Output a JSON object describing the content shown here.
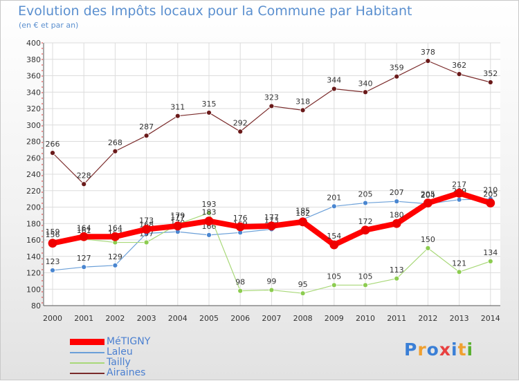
{
  "title": "Evolution des Impôts locaux pour la Commune par Habitant",
  "subtitle": "(en € et par an)",
  "logo": {
    "text": "Proxiti",
    "letters": [
      "P",
      "r",
      "o",
      "x",
      "i",
      "t",
      "i"
    ],
    "colors": [
      "#3a7fd6",
      "#f0a030",
      "#3a7fd6",
      "#e84040",
      "#3a7fd6",
      "#f0a030",
      "#5ab030"
    ]
  },
  "chart_data": {
    "type": "line",
    "x": [
      2000,
      2001,
      2002,
      2003,
      2004,
      2005,
      2006,
      2007,
      2008,
      2009,
      2010,
      2011,
      2012,
      2013,
      2014
    ],
    "ylim": [
      80,
      400
    ],
    "yticks": [
      80,
      100,
      120,
      140,
      160,
      180,
      200,
      220,
      240,
      260,
      280,
      300,
      320,
      340,
      360,
      380,
      400
    ],
    "grid": true,
    "legend_position": "bottom-left",
    "series": [
      {
        "name": "Airaines",
        "color": "#7a2a2a",
        "marker": "#6a1a1a",
        "width": 1.2,
        "values": [
          266,
          228,
          268,
          287,
          311,
          315,
          292,
          323,
          318,
          344,
          340,
          359,
          378,
          362,
          352
        ]
      },
      {
        "name": "Laleu",
        "color": "#6a9fd8",
        "marker": "#4a86d0",
        "width": 1.2,
        "values": [
          123,
          127,
          129,
          168,
          170,
          166,
          169,
          173,
          185,
          201,
          205,
          207,
          204,
          209,
          210
        ]
      },
      {
        "name": "Tailly",
        "color": "#a8d878",
        "marker": "#8ccc50",
        "width": 1.2,
        "values": [
          159,
          161,
          157,
          157,
          179,
          193,
          98,
          99,
          95,
          105,
          105,
          113,
          150,
          121,
          134
        ]
      },
      {
        "name": "MéTIGNY",
        "color": "#ff0000",
        "marker": "#ee0000",
        "width": 8,
        "values": [
          156,
          164,
          164,
          173,
          177,
          183,
          176,
          177,
          182,
          154,
          172,
          180,
          205,
          217,
          205
        ]
      }
    ]
  }
}
